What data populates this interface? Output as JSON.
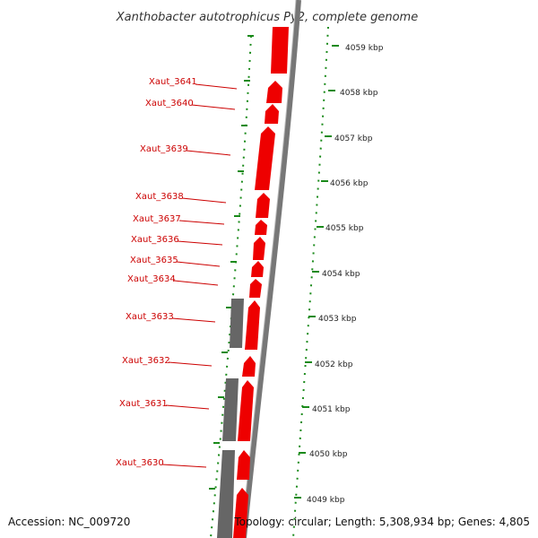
{
  "title": "Xanthobacter autotrophicus Py2, complete genome",
  "footer": {
    "accession": "Accession: NC_009720",
    "topology": "Topology: circular; Length: 5,308,934 bp; Genes: 4,805"
  },
  "colors": {
    "forward_gene": "#ee0000",
    "reverse_gene": "#666666",
    "backbone": "#777777",
    "gene_label": "#cc0000",
    "tick": "#1a8a1a"
  },
  "scale_labels": [
    "4059 kbp",
    "4058 kbp",
    "4057 kbp",
    "4056 kbp",
    "4055 kbp",
    "4054 kbp",
    "4053 kbp",
    "4052 kbp",
    "4051 kbp",
    "4050 kbp",
    "4049 kbp"
  ],
  "gene_labels": [
    "Xaut_3641",
    "Xaut_3640",
    "Xaut_3639",
    "Xaut_3638",
    "Xaut_3637",
    "Xaut_3636",
    "Xaut_3635",
    "Xaut_3634",
    "Xaut_3633",
    "Xaut_3632",
    "Xaut_3631",
    "Xaut_3630"
  ]
}
